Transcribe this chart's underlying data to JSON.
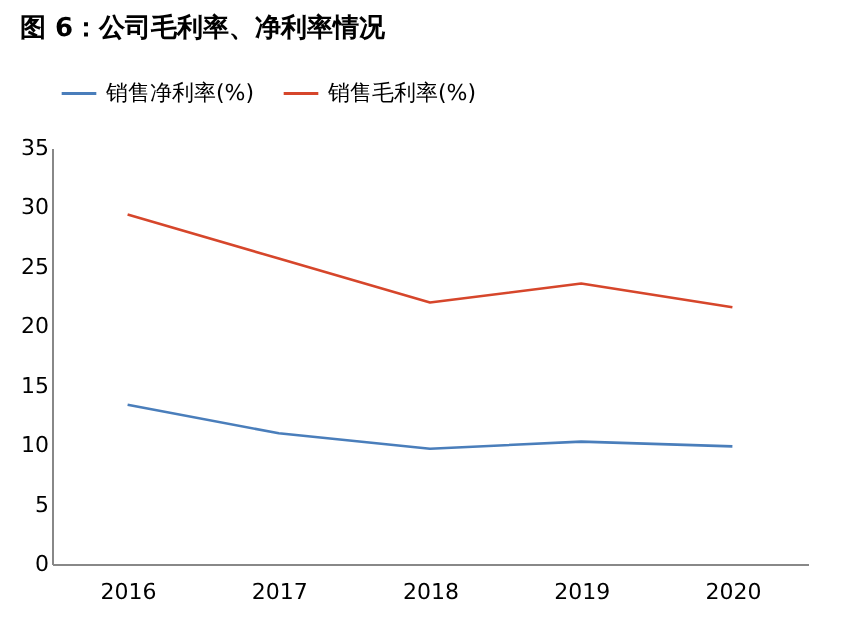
{
  "chart_data": {
    "type": "line",
    "title": "图 6：公司毛利率、净利率情况",
    "categories": [
      "2016",
      "2017",
      "2018",
      "2019",
      "2020"
    ],
    "series": [
      {
        "name": "销售净利率(%)",
        "color": "#4a7ebb",
        "values": [
          13.4,
          11.0,
          9.7,
          10.3,
          9.9
        ]
      },
      {
        "name": "销售毛利率(%)",
        "color": "#d6462b",
        "values": [
          29.4,
          25.7,
          22.0,
          23.6,
          21.6
        ]
      }
    ],
    "ylim": [
      0,
      35
    ],
    "yticks": [
      0,
      5,
      10,
      15,
      20,
      25,
      30,
      35
    ],
    "grid": false,
    "legend": "top",
    "marker": "none",
    "line_style": "solid"
  }
}
